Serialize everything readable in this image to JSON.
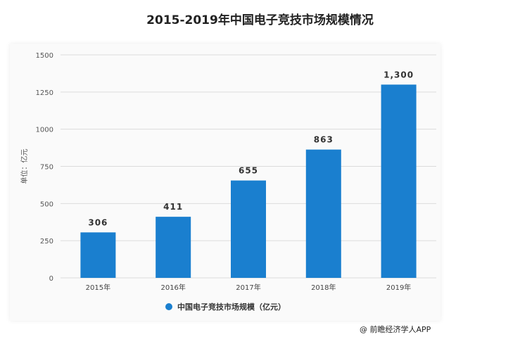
{
  "title": "2015-2019年中国电子竞技市场规模情况",
  "source": "@ 前瞻经济学人APP",
  "chart_data": {
    "type": "bar",
    "title": "2015-2019年中国电子竞技市场规模情况",
    "ylabel": "单位：亿元",
    "xlabel": "",
    "categories": [
      "2015年",
      "2016年",
      "2017年",
      "2018年",
      "2019年"
    ],
    "series": [
      {
        "name": "中国电子竞技市场规模（亿元）",
        "values": [
          306,
          411,
          655,
          863,
          1300
        ],
        "labels": [
          "306",
          "411",
          "655",
          "863",
          "1,300"
        ],
        "color": "#1a7fcf"
      }
    ],
    "ylim": [
      0,
      1500
    ],
    "yticks": [
      "0",
      "250",
      "500",
      "750",
      "1000",
      "1250",
      "1500"
    ],
    "grid": true,
    "legend_position": "bottom"
  }
}
